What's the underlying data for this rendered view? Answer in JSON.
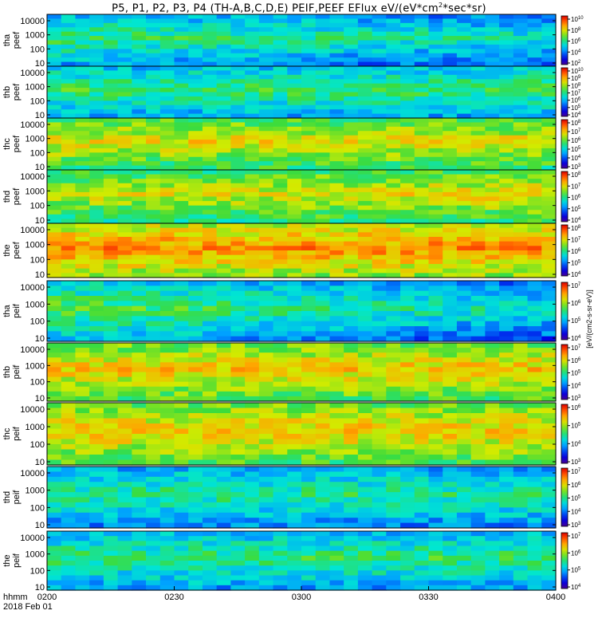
{
  "title_prefix": "P5, P1, P2, P3, P4 (TH-A,B,C,D,E) PEIF,PEEF EFlux eV/(eV*cm",
  "title_sup": "2",
  "title_suffix": "*sec*sr)",
  "chart_data": {
    "type": "heatmap",
    "date_label": "2018 Feb 01",
    "x_unit_label": "hhmm",
    "x_ticks": [
      "0200",
      "0230",
      "0300",
      "0330",
      "0400"
    ],
    "xlim": [
      "02:00",
      "04:00"
    ],
    "y_scale": "log",
    "y_ticks": [
      "10",
      "100",
      "1000",
      "10000"
    ],
    "colorbar_label": "[eV/(cm2-s-sr-eV)]",
    "panels": [
      {
        "label": "tha peef",
        "cbar_ticks": [
          "10^2",
          "10^4",
          "10^6",
          "10^8",
          "10^10"
        ],
        "base": 0.4,
        "trend": -0.1
      },
      {
        "label": "thb peef",
        "cbar_ticks": [
          "10^4",
          "10^5",
          "10^6",
          "10^7",
          "10^8",
          "10^9",
          "10^10"
        ],
        "base": 0.4,
        "trend": 0.0
      },
      {
        "label": "thc peef",
        "cbar_ticks": [
          "10^3",
          "10^4",
          "10^5",
          "10^6",
          "10^7",
          "10^8"
        ],
        "base": 0.65,
        "trend": 0.0
      },
      {
        "label": "thd peef",
        "cbar_ticks": [
          "10^4",
          "10^5",
          "10^6",
          "10^7",
          "10^8"
        ],
        "base": 0.6,
        "trend": 0.05
      },
      {
        "label": "the peef",
        "cbar_ticks": [
          "10^4",
          "10^5",
          "10^6",
          "10^7",
          "10^8"
        ],
        "base": 0.8,
        "trend": 0.0
      },
      {
        "label": "tha peif",
        "cbar_ticks": [
          "10^4",
          "10^5",
          "10^6",
          "10^7"
        ],
        "base": 0.45,
        "trend": -0.15
      },
      {
        "label": "thb peif",
        "cbar_ticks": [
          "10^3",
          "10^4",
          "10^5",
          "10^6",
          "10^7"
        ],
        "base": 0.7,
        "trend": 0.0
      },
      {
        "label": "thc peif",
        "cbar_ticks": [
          "10^3",
          "10^4",
          "10^5",
          "10^6"
        ],
        "base": 0.7,
        "trend": 0.0
      },
      {
        "label": "thd peif",
        "cbar_ticks": [
          "10^3",
          "10^4",
          "10^5",
          "10^6",
          "10^7"
        ],
        "base": 0.35,
        "trend": 0.0
      },
      {
        "label": "the peif",
        "cbar_ticks": [
          "10^4",
          "10^5",
          "10^6",
          "10^7"
        ],
        "base": 0.38,
        "trend": 0.0
      }
    ]
  }
}
